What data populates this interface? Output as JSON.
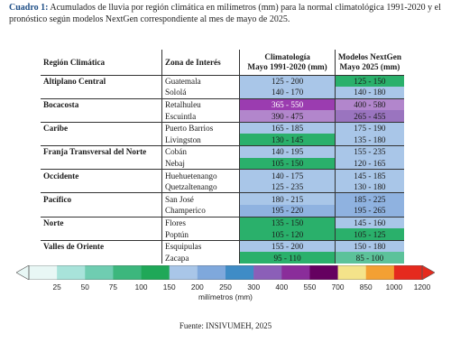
{
  "caption": {
    "label": "Cuadro 1:",
    "text": " Acumulados de lluvia por región climática en milímetros (mm) para la normal climatológica 1991-2020 y el pronóstico según modelos NextGen correspondiente al mes de mayo de 2025."
  },
  "table": {
    "headers": {
      "region": "Región Climática",
      "zone": "Zona de Interés",
      "clim_line1": "Climatología",
      "clim_line2": "Mayo 1991-2020 (mm)",
      "nextgen_line1": "Modelos NextGen",
      "nextgen_line2": "Mayo 2025 (mm)"
    },
    "regions": [
      {
        "name": "Altiplano Central",
        "rows": [
          {
            "zone": "Guatemala",
            "clim": "125 - 200",
            "nextgen": "125 - 150",
            "clim_color": "#a9c6e8",
            "nextgen_color": "#2ab06b"
          },
          {
            "zone": "Sololá",
            "clim": "140 - 170",
            "nextgen": "140 - 180",
            "clim_color": "#a9c6e8",
            "nextgen_color": "#a9c6e8"
          }
        ]
      },
      {
        "name": "Bocacosta",
        "rows": [
          {
            "zone": "Retalhuleu",
            "clim": "365 - 550",
            "nextgen": "400 - 580",
            "clim_color": "#9b3cb0",
            "nextgen_color": "#b286cc"
          },
          {
            "zone": "Escuintla",
            "clim": "390 - 475",
            "nextgen": "265 - 455",
            "clim_color": "#b286cc",
            "nextgen_color": "#9a74bf"
          }
        ]
      },
      {
        "name": "Caribe",
        "rows": [
          {
            "zone": "Puerto Barrios",
            "clim": "165 - 185",
            "nextgen": "175 - 190",
            "clim_color": "#a9c6e8",
            "nextgen_color": "#a9c6e8"
          },
          {
            "zone": "Livingston",
            "clim": "130 - 145",
            "nextgen": "135 - 180",
            "clim_color": "#2ab06b",
            "nextgen_color": "#a9c6e8"
          }
        ]
      },
      {
        "name": "Franja Transversal del Norte",
        "rows": [
          {
            "zone": "Cobán",
            "clim": "140 - 195",
            "nextgen": "155 - 235",
            "clim_color": "#a9c6e8",
            "nextgen_color": "#a9c6e8"
          },
          {
            "zone": "Nebaj",
            "clim": "105 - 150",
            "nextgen": "120 - 165",
            "clim_color": "#2ab06b",
            "nextgen_color": "#a9c6e8"
          }
        ]
      },
      {
        "name": "Occidente",
        "rows": [
          {
            "zone": "Huehuetenango",
            "clim": "140 - 175",
            "nextgen": "145 - 185",
            "clim_color": "#a9c6e8",
            "nextgen_color": "#a9c6e8"
          },
          {
            "zone": "Quetzaltenango",
            "clim": "125 - 235",
            "nextgen": "130 - 180",
            "clim_color": "#a9c6e8",
            "nextgen_color": "#a9c6e8"
          }
        ]
      },
      {
        "name": "Pacífico",
        "rows": [
          {
            "zone": "San José",
            "clim": "180 - 215",
            "nextgen": "185 - 225",
            "clim_color": "#a9c6e8",
            "nextgen_color": "#8fb2e0"
          },
          {
            "zone": "Champerico",
            "clim": "195 - 220",
            "nextgen": "195 - 265",
            "clim_color": "#8fb2e0",
            "nextgen_color": "#8fb2e0"
          }
        ]
      },
      {
        "name": "Norte",
        "rows": [
          {
            "zone": "Flores",
            "clim": "135 - 150",
            "nextgen": "145 - 160",
            "clim_color": "#2ab06b",
            "nextgen_color": "#a9c6e8"
          },
          {
            "zone": "Poptún",
            "clim": "105 - 120",
            "nextgen": "105 - 125",
            "clim_color": "#2ab06b",
            "nextgen_color": "#2ab06b"
          }
        ]
      },
      {
        "name": "Valles de Oriente",
        "rows": [
          {
            "zone": "Esquipulas",
            "clim": "155 - 200",
            "nextgen": "150 - 180",
            "clim_color": "#a9c6e8",
            "nextgen_color": "#a9c6e8"
          },
          {
            "zone": "Zacapa",
            "clim": "95 - 110",
            "nextgen": "85 - 100",
            "clim_color": "#2ab06b",
            "nextgen_color": "#5cc29a"
          }
        ]
      }
    ]
  },
  "colorbar": {
    "ticks": [
      "25",
      "50",
      "75",
      "100",
      "150",
      "200",
      "250",
      "300",
      "400",
      "550",
      "700",
      "850",
      "1000",
      "1200"
    ],
    "colors": [
      "#e8f7f5",
      "#a8e3da",
      "#6fcdb1",
      "#3cb77d",
      "#1fa858",
      "#a9c6e8",
      "#7fa8dc",
      "#3f8cc6",
      "#8b5fb8",
      "#8a2d9a",
      "#650060",
      "#f4e38a",
      "#f3a033",
      "#e52a1e"
    ],
    "unit": "milímetros (mm)"
  },
  "source": "Fuente: INSIVUMEH, 2025"
}
